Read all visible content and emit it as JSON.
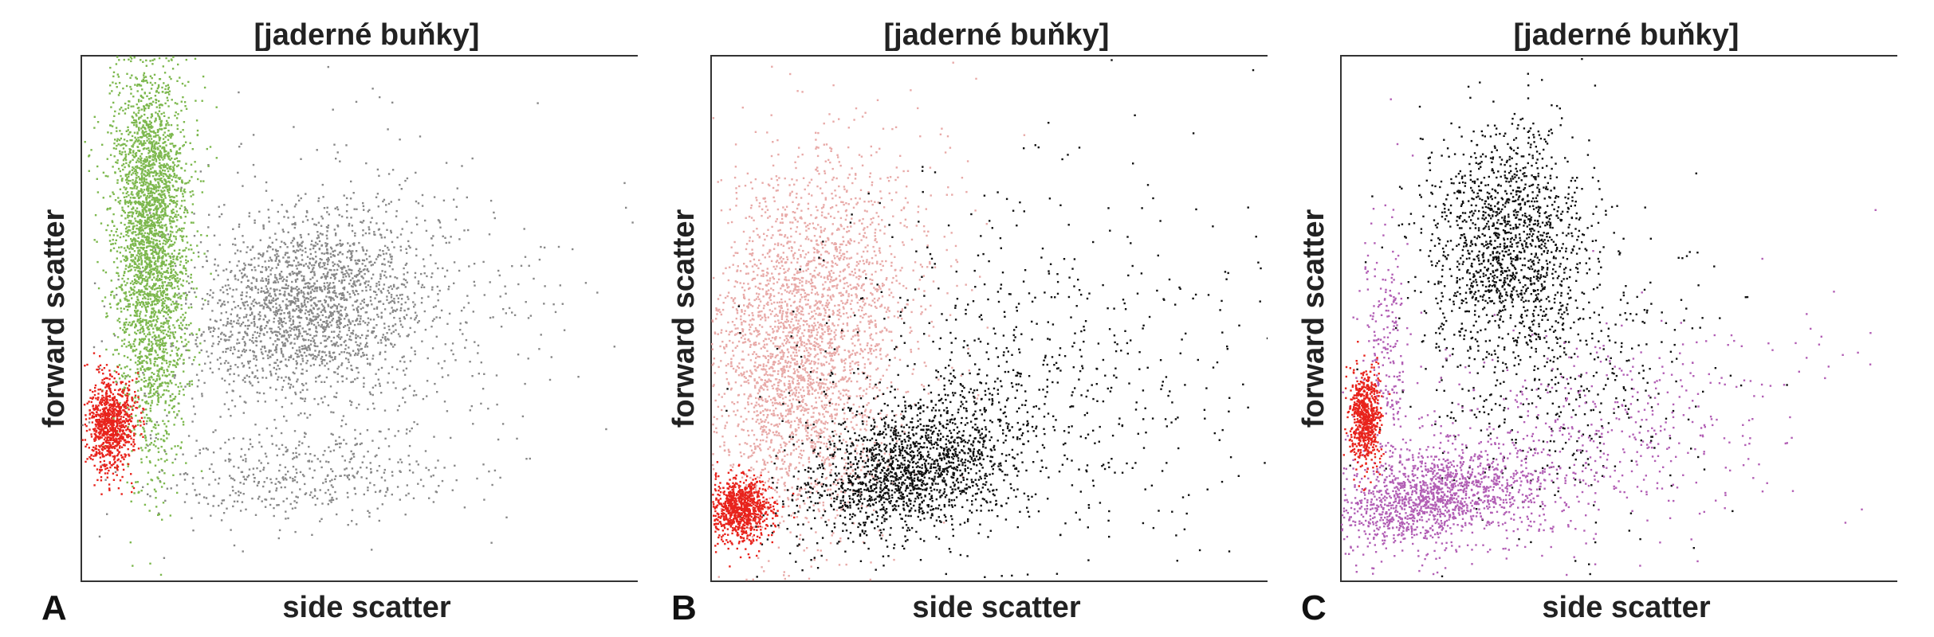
{
  "figure": {
    "panels": [
      {
        "letter": "A",
        "title": "[jaderné buňky]",
        "xlabel": "side scatter",
        "ylabel": "forward scatter"
      },
      {
        "letter": "B",
        "title": "[jaderné buňky]",
        "xlabel": "side scatter",
        "ylabel": "forward scatter"
      },
      {
        "letter": "C",
        "title": "[jaderné buňky]",
        "xlabel": "side scatter",
        "ylabel": "forward scatter"
      }
    ]
  },
  "chart_data": [
    {
      "type": "scatter",
      "title": "[jaderné buňky]",
      "xlabel": "side scatter",
      "ylabel": "forward scatter",
      "panel_letter": "A",
      "xlim": [
        0,
        100
      ],
      "ylim": [
        0,
        100
      ],
      "grid": false,
      "ticks": false,
      "series": [
        {
          "color": "#888888",
          "clusters": [
            {
              "cx": 40,
              "cy": 53,
              "sx": 10,
              "sy": 8,
              "rot": 28,
              "n": 1800
            },
            {
              "cx": 45,
              "cy": 50,
              "sx": 22,
              "sy": 16,
              "rot": 20,
              "n": 700
            },
            {
              "cx": 38,
              "cy": 20,
              "sx": 14,
              "sy": 4,
              "rot": 0,
              "n": 400
            }
          ]
        },
        {
          "color": "#7db84e",
          "clusters": [
            {
              "cx": 12,
              "cy": 62,
              "sx": 3.2,
              "sy": 18,
              "rot": 0,
              "n": 2600
            },
            {
              "cx": 12,
              "cy": 80,
              "sx": 4,
              "sy": 10,
              "rot": 0,
              "n": 500
            }
          ]
        },
        {
          "color": "#e8231c",
          "clusters": [
            {
              "cx": 5,
              "cy": 30,
              "sx": 2,
              "sy": 4.5,
              "rot": 0,
              "n": 900
            }
          ]
        }
      ]
    },
    {
      "type": "scatter",
      "title": "[jaderné buňky]",
      "xlabel": "side scatter",
      "ylabel": "forward scatter",
      "panel_letter": "B",
      "xlim": [
        0,
        100
      ],
      "ylim": [
        0,
        100
      ],
      "grid": false,
      "ticks": false,
      "series": [
        {
          "color": "#e8aaa8",
          "clusters": [
            {
              "cx": 15,
              "cy": 42,
              "sx": 8,
              "sy": 16,
              "rot": 0,
              "n": 2400
            },
            {
              "cx": 22,
              "cy": 60,
              "sx": 10,
              "sy": 14,
              "rot": 0,
              "n": 700
            }
          ]
        },
        {
          "color": "#111111",
          "clusters": [
            {
              "cx": 35,
              "cy": 22,
              "sx": 10,
              "sy": 6,
              "rot": 22,
              "n": 1700
            },
            {
              "cx": 55,
              "cy": 38,
              "sx": 22,
              "sy": 18,
              "rot": 25,
              "n": 700
            }
          ]
        },
        {
          "color": "#e8231c",
          "clusters": [
            {
              "cx": 5,
              "cy": 14,
              "sx": 2.5,
              "sy": 3,
              "rot": 0,
              "n": 900
            }
          ]
        }
      ]
    },
    {
      "type": "scatter",
      "title": "[jaderné buňky]",
      "xlabel": "side scatter",
      "ylabel": "forward scatter",
      "panel_letter": "C",
      "xlim": [
        0,
        100
      ],
      "ylim": [
        0,
        100
      ],
      "grid": false,
      "ticks": false,
      "series": [
        {
          "color": "#111111",
          "clusters": [
            {
              "cx": 29,
              "cy": 65,
              "sx": 7,
              "sy": 11,
              "rot": 0,
              "n": 1400
            },
            {
              "cx": 38,
              "cy": 40,
              "sx": 13,
              "sy": 14,
              "rot": 0,
              "n": 500
            }
          ]
        },
        {
          "color": "#b25fb5",
          "clusters": [
            {
              "cx": 16,
              "cy": 16,
              "sx": 9,
              "sy": 4,
              "rot": 14,
              "n": 1300
            },
            {
              "cx": 38,
              "cy": 25,
              "sx": 22,
              "sy": 10,
              "rot": 18,
              "n": 700
            },
            {
              "cx": 8,
              "cy": 40,
              "sx": 2.2,
              "sy": 14,
              "rot": 0,
              "n": 250
            }
          ]
        },
        {
          "color": "#e8231c",
          "clusters": [
            {
              "cx": 4,
              "cy": 31,
              "sx": 1.4,
              "sy": 4.5,
              "rot": 0,
              "n": 700
            }
          ]
        }
      ]
    }
  ]
}
